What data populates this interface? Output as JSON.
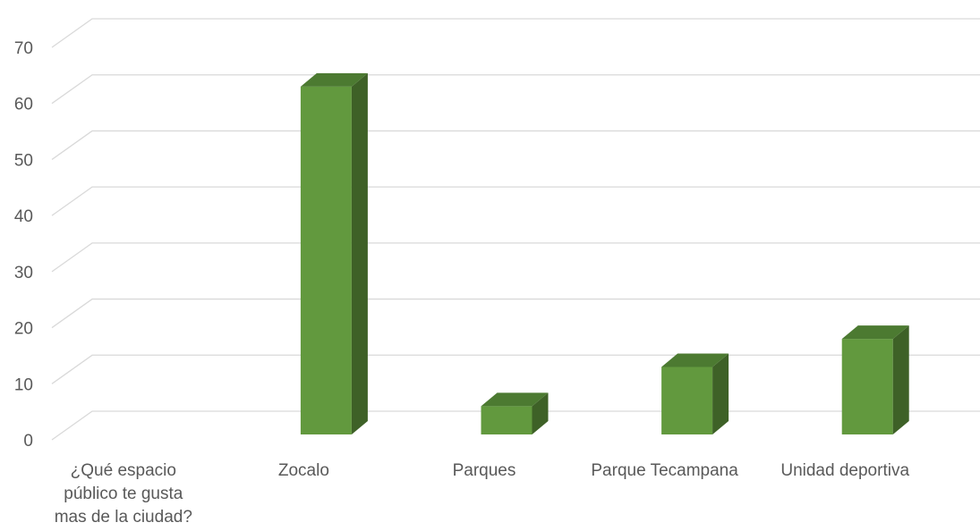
{
  "chart_data": {
    "type": "bar",
    "style": "3d-column",
    "categories": [
      "¿Qué espacio público te gusta mas de la ciudad?",
      "Zocalo",
      "Parques",
      "Parque Tecampana",
      "Unidad deportiva"
    ],
    "values": [
      0,
      63,
      6,
      13,
      18
    ],
    "title": "",
    "xlabel": "",
    "ylabel": "",
    "ylim": [
      0,
      70
    ],
    "yticks": [
      0,
      10,
      20,
      30,
      40,
      50,
      60,
      70
    ],
    "grid": true,
    "legend": "none",
    "colors": {
      "bar_front": "#62993e",
      "bar_side": "#3e6127",
      "bar_top": "#4c7a31",
      "grid": "#d9d9d9",
      "text": "#595959"
    }
  }
}
